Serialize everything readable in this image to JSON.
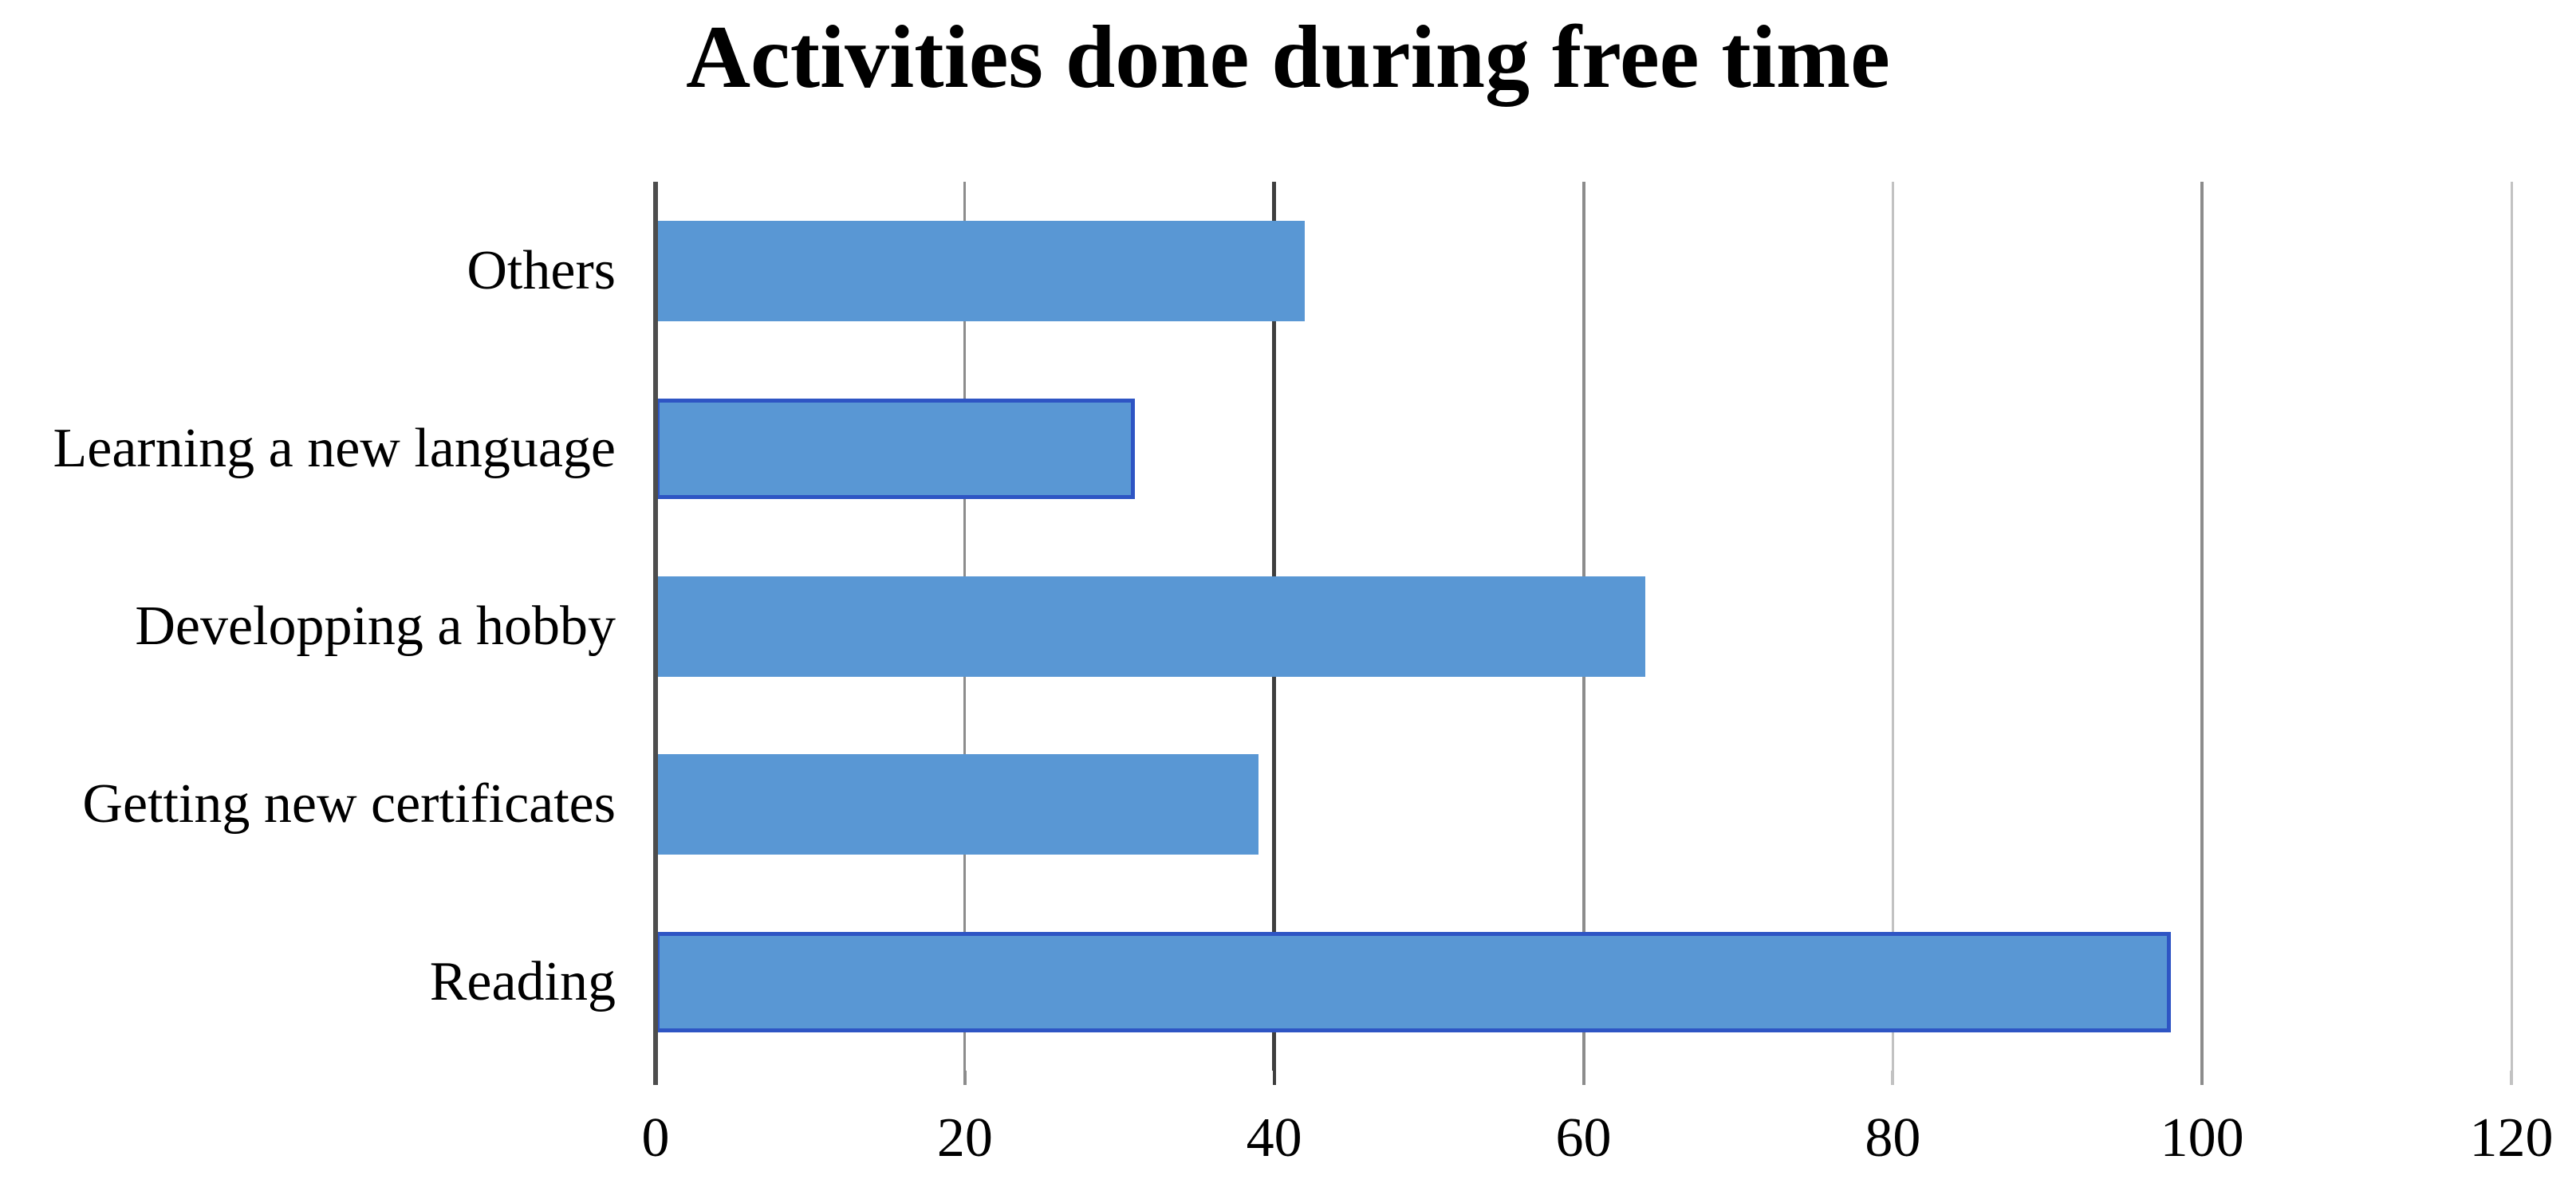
{
  "chart_data": {
    "type": "bar",
    "orientation": "horizontal",
    "title": "Activities done during free time",
    "categories": [
      "Others",
      "Learning a new language",
      "Developping a hobby",
      "Getting new certificates",
      "Reading"
    ],
    "category_order": "top to bottom as displayed",
    "values": [
      42,
      31,
      64,
      39,
      98
    ],
    "xlabel": "",
    "ylabel": "",
    "x_ticks": [
      0,
      20,
      40,
      60,
      80,
      100,
      120
    ],
    "xlim": [
      0,
      120
    ],
    "grid": "vertical gridlines at every x tick",
    "legend": "none",
    "strong_border_bar_indices": [
      1,
      4
    ],
    "colors": {
      "bar_fill": "#5997D4",
      "bar_border_strong": "#2E55C4",
      "axis_line": "#4D4D4D",
      "gridline_dark": "#3F3F3F",
      "gridline_medium": "#8C8C8C",
      "gridline_light": "#C2C2C2",
      "text": "#000000",
      "background": "#FFFFFF"
    }
  }
}
